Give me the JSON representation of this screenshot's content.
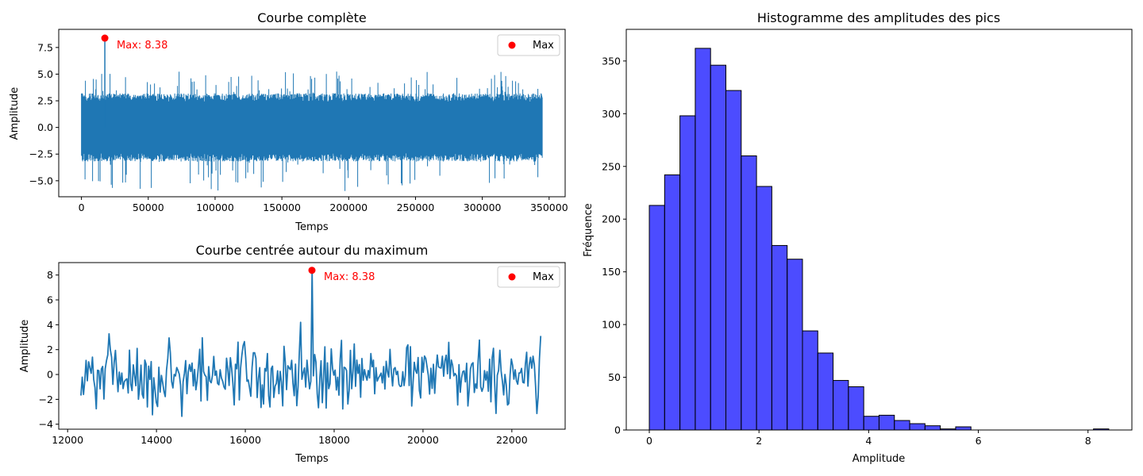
{
  "colors": {
    "line": "#1f77b4",
    "marker": "#ff0000",
    "annotation": "#ff0000",
    "bar_fill": "#0000ff",
    "bar_edge": "#000000"
  },
  "chart_data": [
    {
      "type": "line",
      "title": "Courbe complète",
      "xlabel": "Temps",
      "ylabel": "Amplitude",
      "xlim": [
        -17000,
        362000
      ],
      "ylim": [
        -6.5,
        9.2
      ],
      "xticks": [
        0,
        50000,
        100000,
        150000,
        200000,
        250000,
        300000,
        350000
      ],
      "xtick_labels": [
        "0",
        "50000",
        "100000",
        "150000",
        "200000",
        "250000",
        "300000",
        "350000"
      ],
      "yticks": [
        -5.0,
        -2.5,
        0.0,
        2.5,
        5.0,
        7.5
      ],
      "ytick_labels": [
        "−5.0",
        "−2.5",
        "0.0",
        "2.5",
        "5.0",
        "7.5"
      ],
      "x_range": [
        0,
        345000
      ],
      "envelope": {
        "upper_typical": 3.2,
        "lower_typical": -3.2,
        "upper_extreme": 5.3,
        "lower_extreme": -6.0
      },
      "max_point": {
        "x": 17500,
        "y": 8.38
      },
      "annotation": "Max: 8.38",
      "legend": {
        "label": "Max",
        "position": "top-right"
      }
    },
    {
      "type": "line",
      "title": "Courbe centrée autour du maximum",
      "xlabel": "Temps",
      "ylabel": "Amplitude",
      "xlim": [
        11800,
        23200
      ],
      "ylim": [
        -4.4,
        9.0
      ],
      "xticks": [
        12000,
        14000,
        16000,
        18000,
        20000,
        22000
      ],
      "xtick_labels": [
        "12000",
        "14000",
        "16000",
        "18000",
        "20000",
        "22000"
      ],
      "yticks": [
        -4,
        -2,
        0,
        2,
        4,
        6,
        8
      ],
      "ytick_labels": [
        "−4",
        "−2",
        "0",
        "2",
        "4",
        "6",
        "8"
      ],
      "x_range": [
        12300,
        22650
      ],
      "max_point": {
        "x": 17500,
        "y": 8.38
      },
      "annotation": "Max: 8.38",
      "legend": {
        "label": "Max",
        "position": "top-right"
      }
    },
    {
      "type": "bar",
      "title": "Histogramme des amplitudes des pics",
      "xlabel": "Amplitude",
      "ylabel": "Fréquence",
      "xlim": [
        -0.42,
        8.8
      ],
      "ylim": [
        0,
        380
      ],
      "xticks": [
        0,
        2,
        4,
        6,
        8
      ],
      "xtick_labels": [
        "0",
        "2",
        "4",
        "6",
        "8"
      ],
      "yticks": [
        0,
        50,
        100,
        150,
        200,
        250,
        300,
        350
      ],
      "ytick_labels": [
        "0",
        "50",
        "100",
        "150",
        "200",
        "250",
        "300",
        "350"
      ],
      "bin_start": 0.0,
      "bin_width": 0.2793,
      "values": [
        213,
        242,
        298,
        362,
        346,
        322,
        260,
        231,
        175,
        162,
        94,
        73,
        47,
        41,
        13,
        14,
        9,
        6,
        4,
        1,
        3,
        0,
        0,
        0,
        0,
        0,
        0,
        0,
        0,
        1
      ]
    }
  ]
}
